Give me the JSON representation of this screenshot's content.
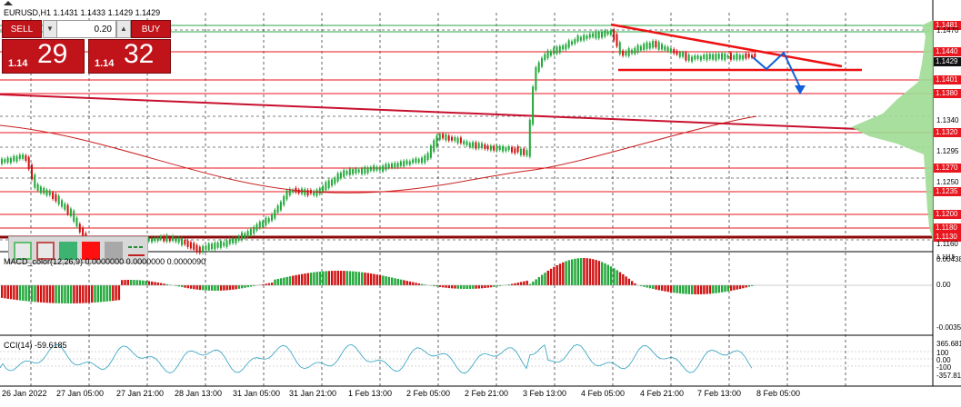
{
  "chart": {
    "title": "EURUSD,H1  1.1431 1.1433 1.1429 1.1429",
    "colors": {
      "up": "#22a83a",
      "down": "#d01010",
      "level": "#e8161e",
      "ma": "#c81e1e",
      "volume_profile": "#9edc95",
      "support_band": "#2aa84a"
    }
  },
  "trade_panel": {
    "sell_label": "SELL",
    "buy_label": "BUY",
    "lot": "0.20",
    "sell_price_prefix": "1.14",
    "sell_price_main": "29",
    "buy_price_prefix": "1.14",
    "buy_price_main": "32",
    "down_arrow": "▼",
    "up_arrow": "▲"
  },
  "price_axis": {
    "tags": [
      "1.1481",
      "1.1440",
      "1.1429",
      "1.1401",
      "1.1380",
      "1.1320",
      "1.1270",
      "1.1235",
      "1.1200",
      "1.1180",
      "1.1130"
    ],
    "labels": [
      "1.1470",
      "1.1340",
      "1.1295",
      "1.1250",
      "1.1160",
      "1.1115"
    ]
  },
  "time_axis": {
    "labels": [
      "26 Jan 2022",
      "27 Jan 05:00",
      "27 Jan 21:00",
      "28 Jan 13:00",
      "31 Jan 05:00",
      "31 Jan 21:00",
      "1 Feb 13:00",
      "2 Feb 05:00",
      "2 Feb 21:00",
      "3 Feb 13:00",
      "4 Feb 05:00",
      "4 Feb 21:00",
      "7 Feb 13:00",
      "8 Feb 05:00"
    ]
  },
  "macd": {
    "label": "MACD_color(12,26,9) 0.0000000 0.0000000 0.0000090",
    "axis": [
      "0.00438",
      "0.00",
      "-0.00353"
    ]
  },
  "cci": {
    "label": "CCI(14) -59.6185",
    "axis": [
      "365.681",
      "100",
      "0.00",
      "-100",
      "-357.812"
    ]
  },
  "toolbar": {
    "tools": [
      "rect-outline-green-icon",
      "rect-outline-red-icon",
      "rect-fill-green-icon",
      "rect-fill-red-icon",
      "rect-fill-gray-icon",
      "line-tool-icon"
    ]
  }
}
